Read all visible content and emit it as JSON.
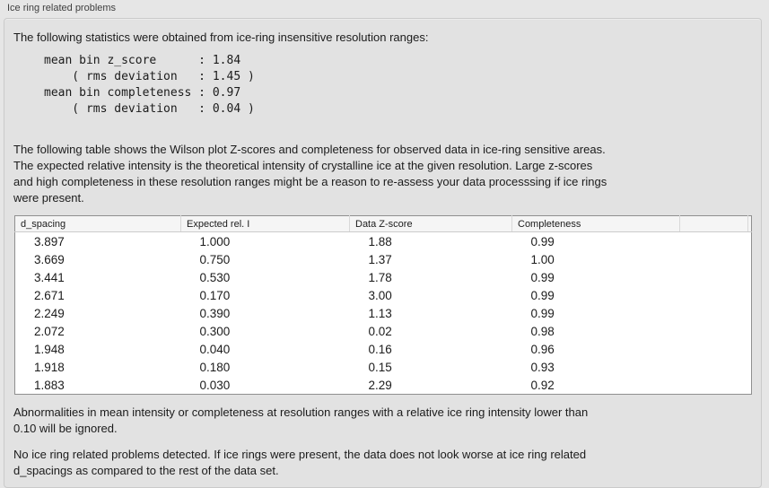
{
  "panel": {
    "title": "Ice ring related problems"
  },
  "intro_text": "The following statistics were obtained from ice-ring insensitive resolution ranges:",
  "stats_block": "mean bin z_score      : 1.84\n    ( rms deviation   : 1.45 )\nmean bin completeness : 0.97\n    ( rms deviation   : 0.04 )",
  "table_description": "The following table shows the Wilson plot Z-scores and completeness for observed data in ice-ring sensitive areas.\nThe expected relative intensity is the theoretical intensity of crystalline ice at the given resolution. Large z-scores\nand high completeness in these resolution ranges might be a reason to re-assess your data processsing if ice rings\nwere present.",
  "table": {
    "headers": [
      "d_spacing",
      "Expected rel. I",
      "Data Z-score",
      "Completeness",
      ""
    ],
    "rows": [
      [
        "3.897",
        "1.000",
        "1.88",
        "0.99"
      ],
      [
        "3.669",
        "0.750",
        "1.37",
        "1.00"
      ],
      [
        "3.441",
        "0.530",
        "1.78",
        "0.99"
      ],
      [
        "2.671",
        "0.170",
        "3.00",
        "0.99"
      ],
      [
        "2.249",
        "0.390",
        "1.13",
        "0.99"
      ],
      [
        "2.072",
        "0.300",
        "0.02",
        "0.98"
      ],
      [
        "1.948",
        "0.040",
        "0.16",
        "0.96"
      ],
      [
        "1.918",
        "0.180",
        "0.15",
        "0.93"
      ],
      [
        "1.883",
        "0.030",
        "2.29",
        "0.92"
      ]
    ]
  },
  "ignore_note": "Abnormalities in mean intensity or completeness at resolution ranges with a relative ice ring intensity lower than\n0.10 will be ignored.",
  "conclusion": "No ice ring related problems detected. If ice rings were present, the data does not look worse at ice ring related\nd_spacings as compared to the rest of the data set."
}
